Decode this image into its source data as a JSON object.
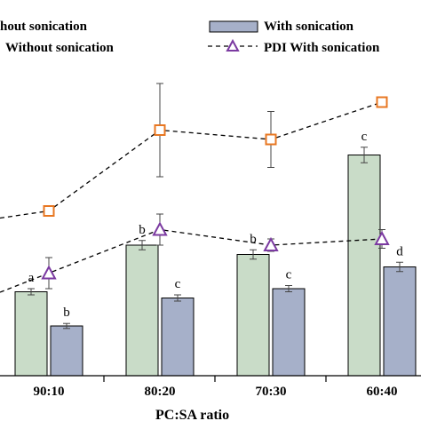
{
  "colors": {
    "bar_without": "#c9dcc8",
    "bar_with": "#a6b0c9",
    "line_without": "#e87722",
    "line_with": "#7b3aa1",
    "axis": "#000000"
  },
  "chart_data": {
    "type": "bar",
    "xlabel": "PC:SA ratio",
    "categories": [
      "90:10",
      "80:20",
      "70:30",
      "60:40"
    ],
    "legend": {
      "placement": "top",
      "entries": [
        {
          "label": "hout sonication",
          "icon": "bar-swatch-green-icon"
        },
        {
          "label": "With sonication",
          "icon": "bar-swatch-blue-icon"
        },
        {
          "label": "Without sonication",
          "icon": "dashed-line-square-marker-icon"
        },
        {
          "label": "PDI With sonication",
          "icon": "dashed-line-triangle-marker-icon"
        }
      ]
    },
    "bars": [
      {
        "name": "Without sonication",
        "color": "#c9dcc8",
        "values": [
          0.27,
          0.42,
          0.39,
          0.71
        ],
        "errors": [
          0.01,
          0.015,
          0.015,
          0.025
        ],
        "letters": [
          "a",
          "b",
          "b",
          "c"
        ]
      },
      {
        "name": "With sonication",
        "color": "#a6b0c9",
        "values": [
          0.16,
          0.25,
          0.28,
          0.35
        ],
        "errors": [
          0.008,
          0.01,
          0.01,
          0.015
        ],
        "letters": [
          "b",
          "c",
          "c",
          "d"
        ]
      }
    ],
    "lines": [
      {
        "name": "PDI Without sonication",
        "marker": "square",
        "color": "#e87722",
        "values": [
          0.53,
          0.79,
          0.76,
          0.88
        ],
        "errors": [
          0.0,
          0.15,
          0.09,
          0.0
        ]
      },
      {
        "name": "PDI With sonication",
        "marker": "triangle",
        "color": "#7b3aa1",
        "values": [
          0.33,
          0.47,
          0.42,
          0.44
        ],
        "errors": [
          0.05,
          0.05,
          0.02,
          0.03
        ]
      }
    ],
    "ylim": [
      0,
      1
    ],
    "grid": false
  }
}
